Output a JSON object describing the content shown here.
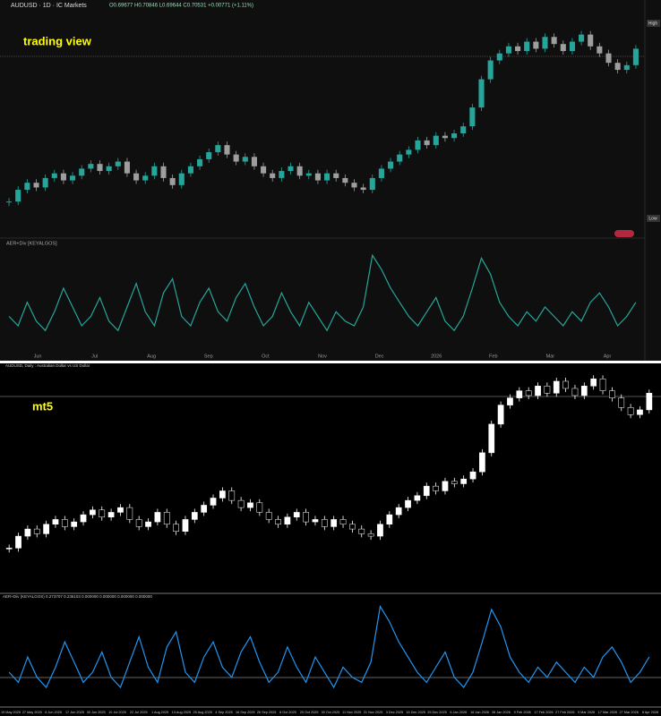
{
  "tradingview": {
    "symbol": "AUDUSD · 1D · IC Markets",
    "ohlc": "O0.69677 H0.70846 L0.69644 C0.70531 +0.00771 (+1.11%)",
    "watermark": "trading view",
    "high_label": "High",
    "low_label": "Low",
    "indicator": "AER+Div [KEYALGOS]",
    "up_color": "#26a69a",
    "down_color": "#9e9e9e",
    "line_color": "#26a69a",
    "ylim": [
      0.626,
      0.72
    ],
    "osc_lim": [
      0,
      100
    ],
    "x_labels": [
      "Jun",
      "Jul",
      "Aug",
      "Sep",
      "Oct",
      "Nov",
      "Dec",
      "2026",
      "Feb",
      "Mar",
      "Apr"
    ],
    "closes": [
      0.64,
      0.645,
      0.648,
      0.646,
      0.65,
      0.652,
      0.649,
      0.651,
      0.654,
      0.656,
      0.653,
      0.655,
      0.657,
      0.652,
      0.649,
      0.651,
      0.655,
      0.65,
      0.647,
      0.652,
      0.655,
      0.658,
      0.661,
      0.664,
      0.66,
      0.657,
      0.659,
      0.655,
      0.652,
      0.65,
      0.653,
      0.655,
      0.651,
      0.652,
      0.649,
      0.652,
      0.65,
      0.648,
      0.646,
      0.645,
      0.65,
      0.654,
      0.657,
      0.66,
      0.662,
      0.666,
      0.664,
      0.668,
      0.667,
      0.669,
      0.672,
      0.68,
      0.692,
      0.7,
      0.703,
      0.706,
      0.704,
      0.708,
      0.705,
      0.71,
      0.707,
      0.704,
      0.708,
      0.711,
      0.706,
      0.703,
      0.699,
      0.696,
      0.698,
      0.705
    ],
    "oscillator": [
      30,
      20,
      45,
      25,
      15,
      35,
      60,
      40,
      20,
      30,
      50,
      25,
      15,
      40,
      65,
      35,
      20,
      55,
      70,
      30,
      20,
      45,
      60,
      35,
      25,
      50,
      65,
      40,
      20,
      30,
      55,
      35,
      20,
      45,
      30,
      15,
      35,
      25,
      20,
      40,
      95,
      80,
      60,
      45,
      30,
      20,
      35,
      50,
      25,
      15,
      30,
      60,
      92,
      75,
      45,
      30,
      20,
      35,
      25,
      40,
      30,
      20,
      35,
      25,
      45,
      55,
      40,
      20,
      30,
      45
    ]
  },
  "mt5": {
    "symbol": "AUDUSD, Daily : Australian Dollar vs US Dollar",
    "watermark": "mt5",
    "indicator": "AER+Div (KEYALGOS) 0.273707 0.236103 0.000000 0.000000 0.000000 0.000000",
    "up_color": "#ffffff",
    "down_color": "#000000",
    "line_color": "#2196f3",
    "ylim": [
      0.624,
      0.716
    ],
    "osc_lim": [
      0,
      100
    ],
    "x_labels": [
      "19 May 2025",
      "27 May 2025",
      "6 Jun 2025",
      "17 Jun 2025",
      "30 Jun 2025",
      "10 Jul 2025",
      "22 Jul 2025",
      "1 Aug 2025",
      "13 Aug 2025",
      "25 Aug 2025",
      "4 Sep 2025",
      "16 Sep 2025",
      "26 Sep 2025",
      "8 Oct 2025",
      "20 Oct 2025",
      "30 Oct 2025",
      "11 Nov 2025",
      "21 Nov 2025",
      "3 Dec 2025",
      "15 Dec 2025",
      "25 Dec 2025",
      "6 Jan 2026",
      "16 Jan 2026",
      "28 Jan 2026",
      "9 Feb 2026",
      "17 Feb 2026",
      "27 Feb 2026",
      "9 Mar 2026",
      "17 Mar 2026",
      "27 Mar 2026",
      "8 Apr 2026"
    ],
    "closes": [
      0.64,
      0.645,
      0.648,
      0.646,
      0.65,
      0.652,
      0.649,
      0.651,
      0.654,
      0.656,
      0.653,
      0.655,
      0.657,
      0.652,
      0.649,
      0.651,
      0.655,
      0.65,
      0.647,
      0.652,
      0.655,
      0.658,
      0.661,
      0.664,
      0.66,
      0.657,
      0.659,
      0.655,
      0.652,
      0.65,
      0.653,
      0.655,
      0.651,
      0.652,
      0.649,
      0.652,
      0.65,
      0.648,
      0.646,
      0.645,
      0.65,
      0.654,
      0.657,
      0.66,
      0.662,
      0.666,
      0.664,
      0.668,
      0.667,
      0.669,
      0.672,
      0.68,
      0.692,
      0.7,
      0.703,
      0.706,
      0.704,
      0.708,
      0.705,
      0.71,
      0.707,
      0.704,
      0.708,
      0.711,
      0.706,
      0.703,
      0.699,
      0.696,
      0.698,
      0.705
    ],
    "oscillator": [
      30,
      20,
      45,
      25,
      15,
      35,
      60,
      40,
      20,
      30,
      50,
      25,
      15,
      40,
      65,
      35,
      20,
      55,
      70,
      30,
      20,
      45,
      60,
      35,
      25,
      50,
      65,
      40,
      20,
      30,
      55,
      35,
      20,
      45,
      30,
      15,
      35,
      25,
      20,
      40,
      95,
      80,
      60,
      45,
      30,
      20,
      35,
      50,
      25,
      15,
      30,
      60,
      92,
      75,
      45,
      30,
      20,
      35,
      25,
      40,
      30,
      20,
      35,
      25,
      45,
      55,
      40,
      20,
      30,
      45
    ]
  }
}
